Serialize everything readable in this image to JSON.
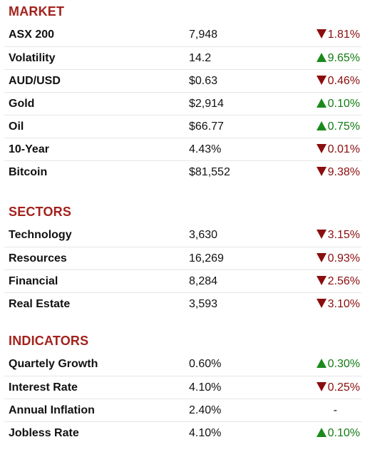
{
  "colors": {
    "heading": "#a3221d",
    "down": "#8b0d0d",
    "up": "#127a12",
    "divider": "#e6e6e6"
  },
  "sections": [
    {
      "title": "MARKET",
      "rows": [
        {
          "name": "ASX 200",
          "value": "7,948",
          "direction": "down",
          "arrow_icon": "triangle-down-icon",
          "change": "1.81%"
        },
        {
          "name": "Volatility",
          "value": "14.2",
          "direction": "up",
          "arrow_icon": "triangle-up-icon",
          "change": "9.65%"
        },
        {
          "name": "AUD/USD",
          "value": "$0.63",
          "direction": "down",
          "arrow_icon": "triangle-down-icon",
          "change": "0.46%"
        },
        {
          "name": "Gold",
          "value": "$2,914",
          "direction": "up",
          "arrow_icon": "triangle-up-icon",
          "change": "0.10%"
        },
        {
          "name": "Oil",
          "value": "$66.77",
          "direction": "up",
          "arrow_icon": "triangle-up-icon",
          "change": "0.75%"
        },
        {
          "name": "10-Year",
          "value": "4.43%",
          "direction": "down",
          "arrow_icon": "triangle-down-icon",
          "change": "0.01%"
        },
        {
          "name": "Bitcoin",
          "value": "$81,552",
          "direction": "down",
          "arrow_icon": "triangle-down-icon",
          "change": "9.38%"
        }
      ]
    },
    {
      "title": "SECTORS",
      "rows": [
        {
          "name": "Technology",
          "value": "3,630",
          "direction": "down",
          "arrow_icon": "triangle-down-icon",
          "change": "3.15%"
        },
        {
          "name": "Resources",
          "value": "16,269",
          "direction": "down",
          "arrow_icon": "triangle-down-icon",
          "change": "0.93%"
        },
        {
          "name": "Financial",
          "value": "8,284",
          "direction": "down",
          "arrow_icon": "triangle-down-icon",
          "change": "2.56%"
        },
        {
          "name": "Real Estate",
          "value": "3,593",
          "direction": "down",
          "arrow_icon": "triangle-down-icon",
          "change": "3.10%"
        }
      ]
    },
    {
      "title": "INDICATORS",
      "rows": [
        {
          "name": "Quartely Growth",
          "value": "0.60%",
          "direction": "up",
          "arrow_icon": "triangle-up-icon",
          "change": "0.30%"
        },
        {
          "name": "Interest Rate",
          "value": "4.10%",
          "direction": "down",
          "arrow_icon": "triangle-down-icon",
          "change": "0.25%"
        },
        {
          "name": "Annual Inflation",
          "value": "2.40%",
          "direction": "flat",
          "arrow_icon": "",
          "change": "-"
        },
        {
          "name": "Jobless Rate",
          "value": "4.10%",
          "direction": "up",
          "arrow_icon": "triangle-up-icon",
          "change": "0.10%"
        }
      ]
    }
  ]
}
